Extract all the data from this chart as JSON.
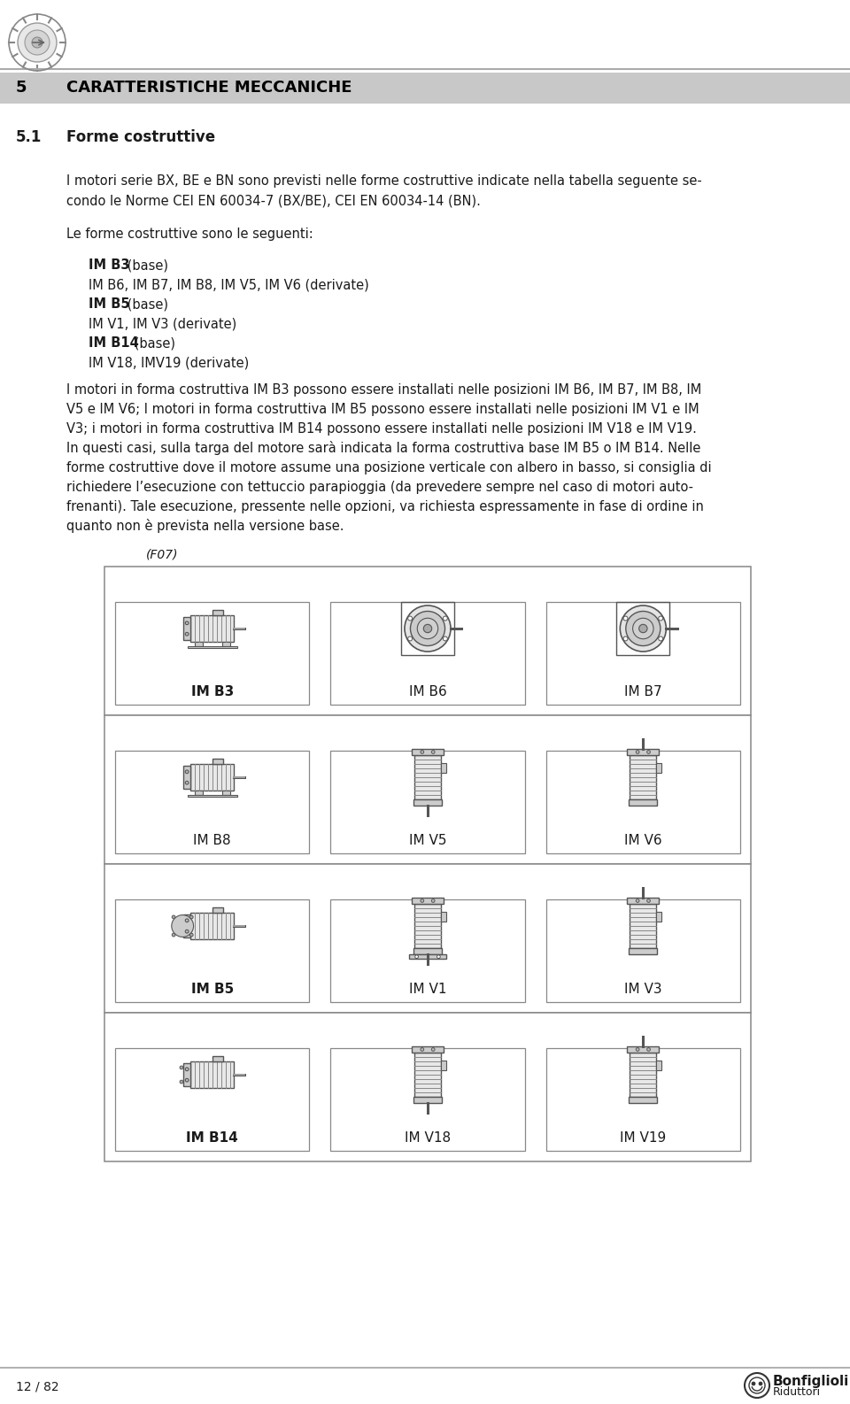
{
  "page_bg": "#ffffff",
  "header_bg": "#c8c8c8",
  "section_number": "5",
  "section_title": "CARATTERISTICHE MECCANICHE",
  "subsection": "5.1",
  "subsection_title": "Forme costruttive",
  "para1_lines": [
    "I motori serie BX, BE e BN sono previsti nelle forme costruttive indicate nella tabella seguente se-",
    "condo le Norme CEI EN 60034-7 (BX/BE), CEI EN 60034-14 (BN)."
  ],
  "para2_intro": "Le forme costruttive sono le seguenti:",
  "forms_list": [
    {
      "bold_part": "IM B3",
      "normal_part": " (base)"
    },
    {
      "bold_part": "",
      "normal_part": "IM B6, IM B7, IM B8, IM V5, IM V6 (derivate)"
    },
    {
      "bold_part": "IM B5",
      "normal_part": " (base)"
    },
    {
      "bold_part": "",
      "normal_part": "IM V1, IM V3 (derivate)"
    },
    {
      "bold_part": "IM B14",
      "normal_part": " (base)"
    },
    {
      "bold_part": "",
      "normal_part": "IM V18, IMV19 (derivate)"
    }
  ],
  "para3_lines": [
    "I motori in forma costruttiva IM B3 possono essere installati nelle posizioni IM B6, IM B7, IM B8, IM",
    "V5 e IM V6; I motori in forma costruttiva IM B5 possono essere installati nelle posizioni IM V1 e IM",
    "V3; i motori in forma costruttiva IM B14 possono essere installati nelle posizioni IM V18 e IM V19.",
    "In questi casi, sulla targa del motore sarà indicata la forma costruttiva base IM B5 o IM B14. Nelle",
    "forme costruttive dove il motore assume una posizione verticale con albero in basso, si consiglia di",
    "richiedere l’esecuzione con tettuccio parapioggia (da prevedere sempre nel caso di motori auto-",
    "frenanti). Tale esecuzione, pressente nelle opzioni, va richiesta espressamente in fase di ordine in",
    "quanto non è prevista nella versione base."
  ],
  "f07_label": "(F07)",
  "motor_grid": [
    [
      "B3",
      "B6",
      "B7"
    ],
    [
      "B8",
      "V5",
      "V6"
    ],
    [
      "B5",
      "V1",
      "V3"
    ],
    [
      "B14",
      "V18",
      "V19"
    ]
  ],
  "motor_labels": {
    "B3": "IM B3",
    "B6": "IM B6",
    "B7": "IM B7",
    "B8": "IM B8",
    "V5": "IM V5",
    "V6": "IM V6",
    "B5": "IM B5",
    "V1": "IM V1",
    "V3": "IM V3",
    "B14": "IM B14",
    "V18": "IM V18",
    "V19": "IM V19"
  },
  "bold_motor_labels": [
    "B3",
    "B5",
    "B14"
  ],
  "footer_left": "12 / 82",
  "footer_right_line1": "Bonfiglioli",
  "footer_right_line2": "Riduttori",
  "text_color": "#1a1a1a",
  "header_text_color": "#000000",
  "line_color": "#aaaaaa",
  "box_border_color": "#888888",
  "icon_edge": "#555555",
  "icon_fill_body": "#e8e8e8",
  "icon_fill_dark": "#cccccc",
  "icon_fill_mid": "#d8d8d8"
}
